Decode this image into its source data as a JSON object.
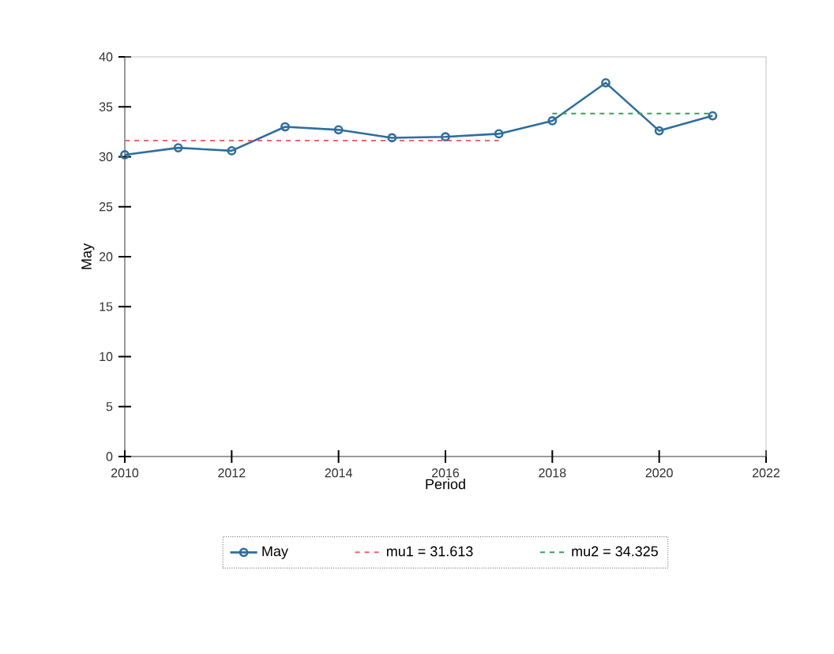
{
  "chart_data": {
    "type": "line",
    "xlabel": "Period",
    "ylabel": "May",
    "x": [
      2010,
      2011,
      2012,
      2013,
      2014,
      2015,
      2016,
      2017,
      2018,
      2019,
      2020,
      2021
    ],
    "series": [
      {
        "name": "May",
        "color": "#2e6e9e",
        "marker": "circle",
        "line_style": "solid",
        "values": [
          30.2,
          30.9,
          30.6,
          33.0,
          32.7,
          31.9,
          32.0,
          32.3,
          33.6,
          37.4,
          32.6,
          34.1
        ]
      },
      {
        "name": "mu1 = 31.613",
        "type": "line",
        "color": "#e8696b",
        "marker": "none",
        "line_style": "dashed",
        "x": [
          2010,
          2017
        ],
        "values": [
          31.613,
          31.613
        ]
      },
      {
        "name": "mu2 = 34.325",
        "type": "line",
        "color": "#3aa05a",
        "marker": "none",
        "line_style": "dashed",
        "x": [
          2018,
          2021
        ],
        "values": [
          34.325,
          34.325
        ]
      }
    ],
    "xlim": [
      2010,
      2022
    ],
    "xticks": [
      2010,
      2012,
      2014,
      2016,
      2018,
      2020,
      2022
    ],
    "ylim": [
      0,
      40
    ],
    "yticks": [
      0,
      5,
      10,
      15,
      20,
      25,
      30,
      35,
      40
    ],
    "grid": false,
    "legend": "bottom"
  }
}
